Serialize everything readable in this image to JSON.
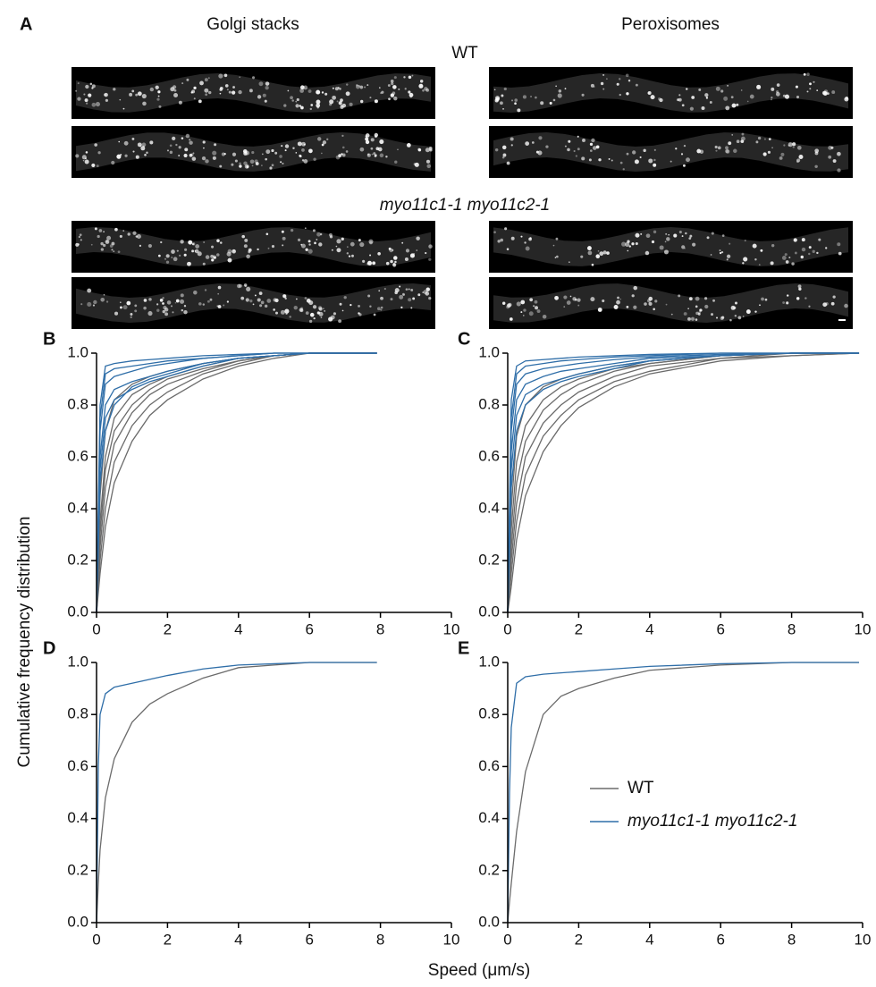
{
  "panel_a": {
    "label": "A",
    "columns": [
      "Golgi stacks",
      "Peroxisomes"
    ],
    "groups": [
      "WT",
      "myo11c1-1 myo11c2-1"
    ]
  },
  "figure": {
    "y_label": "Cumulative frequency distribution",
    "x_label": "Speed (μm/s)"
  },
  "chart_data": [
    {
      "type": "line",
      "panel": "B",
      "x": [
        0,
        0.1,
        0.25,
        0.5,
        1,
        1.5,
        2,
        3,
        4,
        5,
        6,
        7.9
      ],
      "series": [
        {
          "color": "#6b6b6b",
          "values": [
            0,
            0.45,
            0.7,
            0.82,
            0.88,
            0.91,
            0.93,
            0.96,
            0.98,
            0.99,
            1,
            1
          ]
        },
        {
          "color": "#6b6b6b",
          "values": [
            0,
            0.35,
            0.6,
            0.75,
            0.84,
            0.88,
            0.91,
            0.95,
            0.98,
            0.99,
            1,
            1
          ]
        },
        {
          "color": "#6b6b6b",
          "values": [
            0,
            0.3,
            0.55,
            0.7,
            0.8,
            0.86,
            0.9,
            0.94,
            0.97,
            0.99,
            1,
            1
          ]
        },
        {
          "color": "#6b6b6b",
          "values": [
            0,
            0.25,
            0.48,
            0.65,
            0.77,
            0.84,
            0.88,
            0.93,
            0.97,
            0.99,
            1,
            1
          ]
        },
        {
          "color": "#6b6b6b",
          "values": [
            0,
            0.2,
            0.4,
            0.58,
            0.72,
            0.8,
            0.85,
            0.92,
            0.96,
            0.99,
            1,
            1
          ]
        },
        {
          "color": "#6b6b6b",
          "values": [
            0,
            0.15,
            0.33,
            0.5,
            0.66,
            0.76,
            0.82,
            0.9,
            0.95,
            0.98,
            1,
            1
          ]
        },
        {
          "color": "#2f6ea8",
          "values": [
            0,
            0.8,
            0.95,
            0.96,
            0.97,
            0.975,
            0.98,
            0.99,
            0.995,
            1,
            1,
            1
          ]
        },
        {
          "color": "#2f6ea8",
          "values": [
            0,
            0.75,
            0.92,
            0.94,
            0.95,
            0.96,
            0.97,
            0.98,
            0.99,
            1,
            1,
            1
          ]
        },
        {
          "color": "#2f6ea8",
          "values": [
            0,
            0.7,
            0.88,
            0.91,
            0.93,
            0.95,
            0.96,
            0.98,
            0.99,
            1,
            1,
            1
          ]
        },
        {
          "color": "#2f6ea8",
          "values": [
            0,
            0.6,
            0.8,
            0.86,
            0.89,
            0.91,
            0.93,
            0.96,
            0.98,
            0.99,
            1,
            1
          ]
        },
        {
          "color": "#2f6ea8",
          "values": [
            0,
            0.55,
            0.75,
            0.82,
            0.86,
            0.89,
            0.91,
            0.95,
            0.98,
            0.99,
            1,
            1
          ]
        },
        {
          "color": "#2f6ea8",
          "values": [
            0,
            0.5,
            0.7,
            0.8,
            0.87,
            0.9,
            0.92,
            0.96,
            0.98,
            0.99,
            1,
            1
          ]
        }
      ],
      "xlim": [
        0,
        10
      ],
      "xticks": [
        0,
        2,
        4,
        6,
        8,
        10
      ],
      "ylim": [
        0,
        1
      ],
      "yticks": [
        {
          "value": 0,
          "label": "0.0"
        },
        {
          "value": 0.2,
          "label": "0.2"
        },
        {
          "value": 0.4,
          "label": "0.4"
        },
        {
          "value": 0.6,
          "label": "0.6"
        },
        {
          "value": 0.8,
          "label": "0.8"
        },
        {
          "value": 1,
          "label": "1.0"
        }
      ]
    },
    {
      "type": "line",
      "panel": "C",
      "x": [
        0,
        0.1,
        0.25,
        0.5,
        1,
        1.5,
        2,
        3,
        4,
        6,
        8,
        9.9
      ],
      "series": [
        {
          "color": "#6b6b6b",
          "values": [
            0,
            0.4,
            0.68,
            0.8,
            0.87,
            0.9,
            0.92,
            0.95,
            0.97,
            0.99,
            1,
            1
          ]
        },
        {
          "color": "#6b6b6b",
          "values": [
            0,
            0.32,
            0.58,
            0.72,
            0.82,
            0.87,
            0.9,
            0.94,
            0.96,
            0.99,
            1,
            1
          ]
        },
        {
          "color": "#6b6b6b",
          "values": [
            0,
            0.25,
            0.5,
            0.66,
            0.78,
            0.84,
            0.88,
            0.93,
            0.96,
            0.99,
            1,
            1
          ]
        },
        {
          "color": "#6b6b6b",
          "values": [
            0,
            0.2,
            0.42,
            0.6,
            0.73,
            0.8,
            0.85,
            0.91,
            0.95,
            0.98,
            1,
            1
          ]
        },
        {
          "color": "#6b6b6b",
          "values": [
            0,
            0.15,
            0.35,
            0.53,
            0.68,
            0.76,
            0.82,
            0.89,
            0.93,
            0.98,
            0.99,
            1
          ]
        },
        {
          "color": "#6b6b6b",
          "values": [
            0,
            0.1,
            0.28,
            0.45,
            0.62,
            0.72,
            0.79,
            0.87,
            0.92,
            0.97,
            0.99,
            1
          ]
        },
        {
          "color": "#2f6ea8",
          "values": [
            0,
            0.82,
            0.95,
            0.97,
            0.975,
            0.98,
            0.985,
            0.99,
            0.995,
            1,
            1,
            1
          ]
        },
        {
          "color": "#2f6ea8",
          "values": [
            0,
            0.75,
            0.92,
            0.95,
            0.96,
            0.97,
            0.975,
            0.985,
            0.99,
            1,
            1,
            1
          ]
        },
        {
          "color": "#2f6ea8",
          "values": [
            0,
            0.7,
            0.88,
            0.92,
            0.94,
            0.95,
            0.96,
            0.975,
            0.985,
            0.995,
            1,
            1
          ]
        },
        {
          "color": "#2f6ea8",
          "values": [
            0,
            0.62,
            0.82,
            0.88,
            0.91,
            0.93,
            0.94,
            0.96,
            0.98,
            0.99,
            1,
            1
          ]
        },
        {
          "color": "#2f6ea8",
          "values": [
            0,
            0.55,
            0.76,
            0.84,
            0.88,
            0.9,
            0.92,
            0.95,
            0.97,
            0.99,
            1,
            1
          ]
        },
        {
          "color": "#2f6ea8",
          "values": [
            0,
            0.48,
            0.7,
            0.8,
            0.86,
            0.89,
            0.91,
            0.94,
            0.97,
            0.99,
            1,
            1
          ]
        }
      ],
      "xlim": [
        0,
        10
      ],
      "xticks": [
        0,
        2,
        4,
        6,
        8,
        10
      ],
      "ylim": [
        0,
        1
      ],
      "yticks": [
        {
          "value": 0,
          "label": "0.0"
        },
        {
          "value": 0.2,
          "label": "0.2"
        },
        {
          "value": 0.4,
          "label": "0.4"
        },
        {
          "value": 0.6,
          "label": "0.6"
        },
        {
          "value": 0.8,
          "label": "0.8"
        },
        {
          "value": 1,
          "label": "1.0"
        }
      ]
    },
    {
      "type": "line",
      "panel": "D",
      "x": [
        0,
        0.05,
        0.1,
        0.25,
        0.5,
        1,
        1.5,
        2,
        3,
        4,
        5,
        6,
        7.9
      ],
      "series": [
        {
          "color": "#6b6b6b",
          "values": [
            0,
            0.15,
            0.28,
            0.48,
            0.63,
            0.77,
            0.84,
            0.88,
            0.94,
            0.98,
            0.99,
            1,
            1
          ]
        },
        {
          "color": "#2f6ea8",
          "values": [
            0,
            0.6,
            0.8,
            0.88,
            0.905,
            0.92,
            0.935,
            0.95,
            0.975,
            0.99,
            0.995,
            1,
            1
          ]
        }
      ],
      "xlim": [
        0,
        10
      ],
      "xticks": [
        0,
        2,
        4,
        6,
        8,
        10
      ],
      "ylim": [
        0,
        1
      ],
      "yticks": [
        {
          "value": 0,
          "label": "0.0"
        },
        {
          "value": 0.2,
          "label": "0.2"
        },
        {
          "value": 0.4,
          "label": "0.4"
        },
        {
          "value": 0.6,
          "label": "0.6"
        },
        {
          "value": 0.8,
          "label": "0.8"
        },
        {
          "value": 1,
          "label": "1.0"
        }
      ]
    },
    {
      "type": "line",
      "panel": "E",
      "x": [
        0,
        0.05,
        0.1,
        0.25,
        0.5,
        1,
        1.5,
        2,
        3,
        4,
        6,
        8,
        9.9
      ],
      "series": [
        {
          "name": "WT",
          "color": "#6b6b6b",
          "values": [
            0,
            0.08,
            0.15,
            0.35,
            0.58,
            0.8,
            0.87,
            0.9,
            0.94,
            0.97,
            0.99,
            1,
            1
          ]
        },
        {
          "name": "myo11c1-1 myo11c2-1",
          "color": "#2f6ea8",
          "values": [
            0,
            0.5,
            0.75,
            0.92,
            0.945,
            0.955,
            0.96,
            0.965,
            0.975,
            0.985,
            0.995,
            1,
            1
          ]
        }
      ],
      "legend": "right",
      "xlim": [
        0,
        10
      ],
      "xticks": [
        0,
        2,
        4,
        6,
        8,
        10
      ],
      "ylim": [
        0,
        1
      ],
      "yticks": [
        {
          "value": 0,
          "label": "0.0"
        },
        {
          "value": 0.2,
          "label": "0.2"
        },
        {
          "value": 0.4,
          "label": "0.4"
        },
        {
          "value": 0.6,
          "label": "0.6"
        },
        {
          "value": 0.8,
          "label": "0.8"
        },
        {
          "value": 1,
          "label": "1.0"
        }
      ]
    }
  ]
}
